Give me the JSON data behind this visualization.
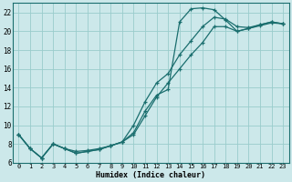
{
  "xlabel": "Humidex (Indice chaleur)",
  "bg_color": "#cce8ea",
  "grid_color": "#99cccc",
  "line_color": "#1a6e6e",
  "xlim": [
    -0.5,
    23.5
  ],
  "ylim": [
    6,
    23
  ],
  "yticks": [
    6,
    8,
    10,
    12,
    14,
    16,
    18,
    20,
    22
  ],
  "xticks": [
    0,
    1,
    2,
    3,
    4,
    5,
    6,
    7,
    8,
    9,
    10,
    11,
    12,
    13,
    14,
    15,
    16,
    17,
    18,
    19,
    20,
    21,
    22,
    23
  ],
  "curve1_x": [
    0,
    1,
    2,
    3,
    4,
    5,
    6,
    7,
    8,
    9,
    10,
    11,
    12,
    13,
    14,
    15,
    16,
    17,
    18,
    19,
    20,
    21,
    22,
    23
  ],
  "curve1_y": [
    9.0,
    7.5,
    6.5,
    8.0,
    7.5,
    7.0,
    7.2,
    7.4,
    7.8,
    8.2,
    9.2,
    11.5,
    13.2,
    13.8,
    21.0,
    22.4,
    22.5,
    22.3,
    21.2,
    20.0,
    20.3,
    20.6,
    20.9,
    20.8
  ],
  "curve2_x": [
    0,
    1,
    2,
    3,
    4,
    5,
    6,
    7,
    8,
    9,
    10,
    11,
    12,
    13,
    14,
    15,
    16,
    17,
    18,
    19,
    20,
    21,
    22,
    23
  ],
  "curve2_y": [
    9.0,
    7.5,
    6.5,
    8.0,
    7.5,
    7.0,
    7.2,
    7.4,
    7.8,
    8.2,
    10.0,
    12.5,
    14.5,
    15.5,
    17.5,
    19.0,
    20.5,
    21.5,
    21.3,
    20.5,
    20.4,
    20.7,
    21.0,
    20.8
  ],
  "curve3_x": [
    0,
    1,
    2,
    3,
    4,
    5,
    6,
    7,
    8,
    9,
    10,
    11,
    12,
    13,
    14,
    15,
    16,
    17,
    18,
    19,
    20,
    21,
    22,
    23
  ],
  "curve3_y": [
    9.0,
    7.5,
    6.5,
    8.0,
    7.5,
    7.2,
    7.3,
    7.5,
    7.8,
    8.2,
    9.0,
    11.0,
    13.0,
    14.5,
    16.0,
    17.5,
    18.8,
    20.5,
    20.5,
    20.0,
    20.3,
    20.7,
    21.0,
    20.8
  ]
}
